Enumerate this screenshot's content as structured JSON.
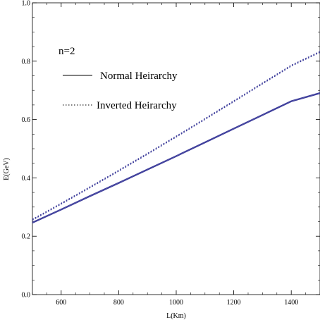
{
  "chart_data": {
    "type": "line",
    "title": "",
    "xlabel": "L(Km)",
    "ylabel": "E(GeV)",
    "xlim": [
      500,
      1500
    ],
    "ylim": [
      0.0,
      1.0
    ],
    "xticks": [
      600,
      800,
      1000,
      1200,
      1400
    ],
    "xtick_labels": [
      "600",
      "800",
      "1000",
      "1200",
      "1400"
    ],
    "yticks": [
      0.0,
      0.2,
      0.4,
      0.6,
      0.8,
      1.0
    ],
    "ytick_labels": [
      "0.0",
      "0.2",
      "0.4",
      "0.6",
      "0.8",
      "1.0"
    ],
    "annotation": "n=2",
    "legend_position": "upper-left",
    "grid": false,
    "series": [
      {
        "name": "Normal Heirarchy",
        "style": "solid",
        "color": "#3b3b9a",
        "x": [
          500,
          600,
          700,
          800,
          900,
          1000,
          1100,
          1200,
          1300,
          1400,
          1500
        ],
        "y": [
          0.245,
          0.29,
          0.336,
          0.381,
          0.427,
          0.473,
          0.52,
          0.567,
          0.614,
          0.661,
          0.689
        ]
      },
      {
        "name": "Inverted Heirarchy",
        "style": "dotted",
        "color": "#3b3b9a",
        "x": [
          500,
          600,
          700,
          800,
          900,
          1000,
          1100,
          1200,
          1300,
          1400,
          1500
        ],
        "y": [
          0.255,
          0.31,
          0.366,
          0.423,
          0.481,
          0.54,
          0.6,
          0.661,
          0.722,
          0.783,
          0.83
        ]
      }
    ]
  }
}
